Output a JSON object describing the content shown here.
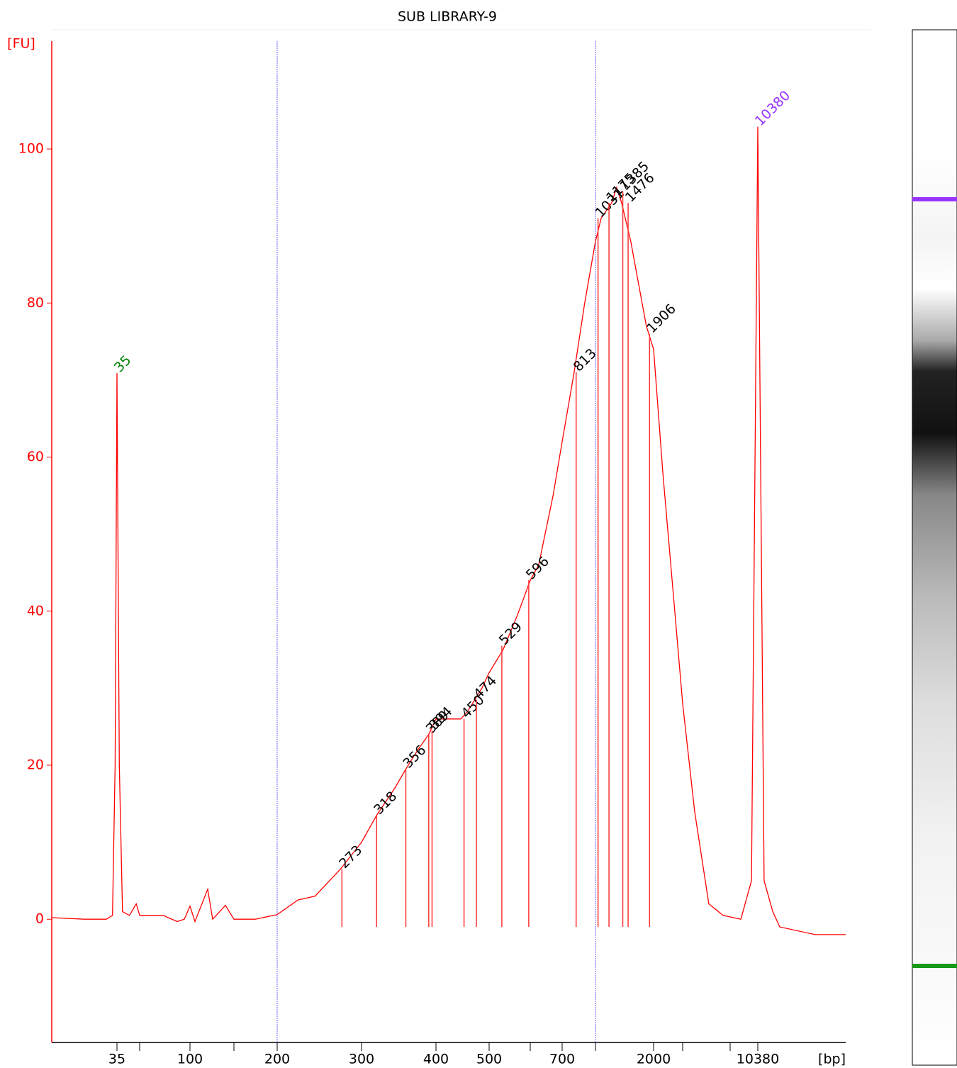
{
  "chart_data": {
    "type": "electropherogram",
    "title": "SUB LIBRARY-9",
    "y_label": "[FU]",
    "x_label": "[bp]",
    "xlim": [
      12.5,
      36000
    ],
    "xticks": [
      35,
      100,
      200,
      300,
      400,
      500,
      700,
      2000,
      10380
    ],
    "xticks_minor": [
      50,
      150,
      600,
      1000,
      3000,
      7000
    ],
    "ylim": [
      -16,
      114
    ],
    "yticks": [
      0,
      20,
      40,
      60,
      80,
      100
    ],
    "region_bounds": [
      200,
      1000
    ],
    "x": [
      12.5,
      21,
      29.6,
      32.6,
      34,
      35,
      36.3,
      38.2,
      42.6,
      47.4,
      50,
      69,
      84,
      92.5,
      100,
      104.7,
      117.8,
      123.3,
      138.7,
      150,
      173,
      200,
      221,
      240,
      271,
      300,
      318,
      341,
      356,
      373,
      389,
      400,
      418,
      444,
      457,
      485,
      500,
      532,
      567,
      600,
      625,
      670,
      700,
      796,
      891,
      1000,
      1070,
      1213,
      1288,
      1366,
      1524,
      1835,
      2000,
      2274,
      2637,
      3000,
      3716,
      4786,
      6166,
      8150,
      9484,
      10380,
      11350,
      12820,
      14170,
      23380,
      36000
    ],
    "series": [
      {
        "color": "#ff0000",
        "values": [
          0.2,
          0,
          0,
          0.5,
          20,
          70.9,
          20,
          1,
          0.5,
          2,
          0.5,
          0.5,
          -0.3,
          0,
          1.7,
          -0.3,
          3.9,
          0,
          1.8,
          0,
          0,
          0.6,
          2.5,
          3,
          6.5,
          10,
          13.5,
          17,
          19.5,
          22,
          24,
          26,
          26,
          26,
          27,
          30,
          32,
          35,
          39.5,
          44,
          46,
          55,
          62,
          71,
          80,
          88,
          91,
          93,
          95,
          93,
          88,
          77,
          74,
          58,
          42,
          28,
          14,
          2,
          0.5,
          0,
          5,
          102.9,
          5,
          1,
          -1,
          -2,
          -2
        ]
      }
    ],
    "peaks": {
      "sizes": [
        273,
        318,
        356,
        389,
        394,
        450,
        474,
        529,
        596,
        813,
        1031,
        1175,
        1385,
        1476,
        1906
      ],
      "heights": [
        6.5,
        13.5,
        19.5,
        24,
        24.5,
        26,
        28.5,
        35.5,
        44,
        71,
        91,
        93,
        94.5,
        93,
        76
      ],
      "color": "#000000"
    },
    "markers": {
      "sizes": [
        35,
        10380
      ],
      "heights": [
        70.9,
        102.9
      ],
      "colors": [
        "#008000",
        "#9933ff"
      ]
    }
  }
}
